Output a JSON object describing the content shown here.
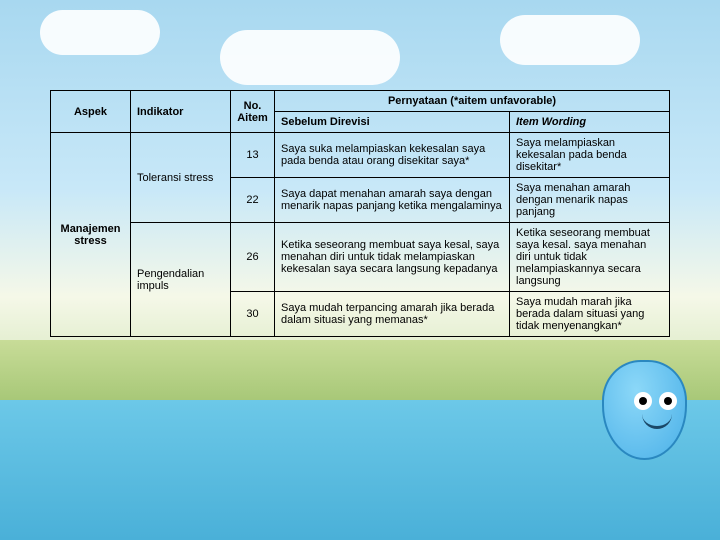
{
  "headers": {
    "aspek": "Aspek",
    "indikator": "Indikator",
    "no_aitem": "No. Aitem",
    "pernyataan": "Pernyataan (*aitem unfavorable)",
    "sebelum": "Sebelum Direvisi",
    "wording": "Item Wording"
  },
  "aspek": "Manajemen stress",
  "groups": [
    {
      "indikator": "Toleransi stress",
      "rows": [
        {
          "no": "13",
          "sebelum": "Saya suka melampiaskan kekesalan saya pada benda atau orang disekitar saya*",
          "wording": "Saya melampiaskan kekesalan pada benda disekitar*"
        },
        {
          "no": "22",
          "sebelum": "Saya dapat menahan amarah saya dengan menarik napas panjang ketika mengalaminya",
          "wording": "Saya menahan amarah dengan menarik napas panjang"
        }
      ]
    },
    {
      "indikator": "Pengendalian impuls",
      "rows": [
        {
          "no": "26",
          "sebelum": "Ketika seseorang membuat saya kesal, saya menahan diri untuk tidak melampiaskan kekesalan saya secara langsung kepadanya",
          "wording": "Ketika seseorang membuat saya kesal. saya menahan diri untuk tidak melampiaskannya secara langsung"
        },
        {
          "no": "30",
          "sebelum": "Saya mudah terpancing amarah jika berada dalam situasi yang memanas*",
          "wording": "Saya mudah marah jika berada dalam situasi yang tidak menyenangkan*"
        }
      ]
    }
  ],
  "colors": {
    "sky_top": "#a8d8f0",
    "water": "#5ab8e0",
    "grass": "#c8dc98",
    "border": "#000000",
    "text": "#000000"
  }
}
